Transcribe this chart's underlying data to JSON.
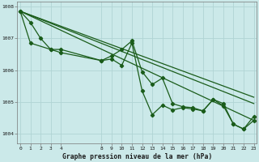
{
  "title": "Graphe pression niveau de la mer (hPa)",
  "bg_color": "#cbe9e9",
  "grid_color": "#b0d4d4",
  "line_color": "#1a5c1a",
  "ylim": [
    1003.7,
    1008.15
  ],
  "yticks": [
    1004,
    1005,
    1006,
    1007,
    1008
  ],
  "xtick_positions": [
    0,
    1,
    2,
    3,
    4,
    8,
    9,
    10,
    11,
    12,
    13,
    14,
    15,
    16,
    17,
    18,
    19,
    20,
    21,
    22,
    23
  ],
  "xtick_labels": [
    "0",
    "1",
    "2",
    "3",
    "4",
    "8",
    "9",
    "10",
    "11",
    "12",
    "13",
    "14",
    "15",
    "16",
    "17",
    "18",
    "19",
    "20",
    "21",
    "22",
    "23"
  ],
  "xlim": [
    -0.3,
    23.3
  ],
  "series1_x": [
    0,
    1,
    2,
    3,
    4,
    8,
    9,
    10,
    11,
    12,
    13,
    14,
    15,
    16,
    17,
    18,
    19,
    20,
    21,
    22,
    23
  ],
  "series1_y": [
    1007.85,
    1007.5,
    1007.0,
    1006.65,
    1006.65,
    1006.3,
    1006.35,
    1006.15,
    1006.85,
    1005.35,
    1004.6,
    1004.9,
    1004.75,
    1004.82,
    1004.78,
    1004.72,
    1005.08,
    1004.88,
    1004.3,
    1004.15,
    1004.42
  ],
  "series2_x": [
    0,
    1,
    3,
    4,
    8,
    9,
    10,
    11,
    12,
    13,
    14,
    15,
    16,
    17,
    18,
    19,
    20,
    21,
    22,
    23
  ],
  "series2_y": [
    1007.85,
    1006.85,
    1006.65,
    1006.55,
    1006.3,
    1006.45,
    1006.65,
    1006.92,
    1005.95,
    1005.55,
    1005.75,
    1004.95,
    1004.85,
    1004.82,
    1004.72,
    1005.08,
    1004.95,
    1004.3,
    1004.15,
    1004.55
  ],
  "trend1_x": [
    0,
    23
  ],
  "trend1_y": [
    1007.85,
    1004.42
  ],
  "trend2_x": [
    0,
    23
  ],
  "trend2_y": [
    1007.85,
    1004.95
  ],
  "trend3_x": [
    0,
    23
  ],
  "trend3_y": [
    1007.85,
    1005.15
  ]
}
